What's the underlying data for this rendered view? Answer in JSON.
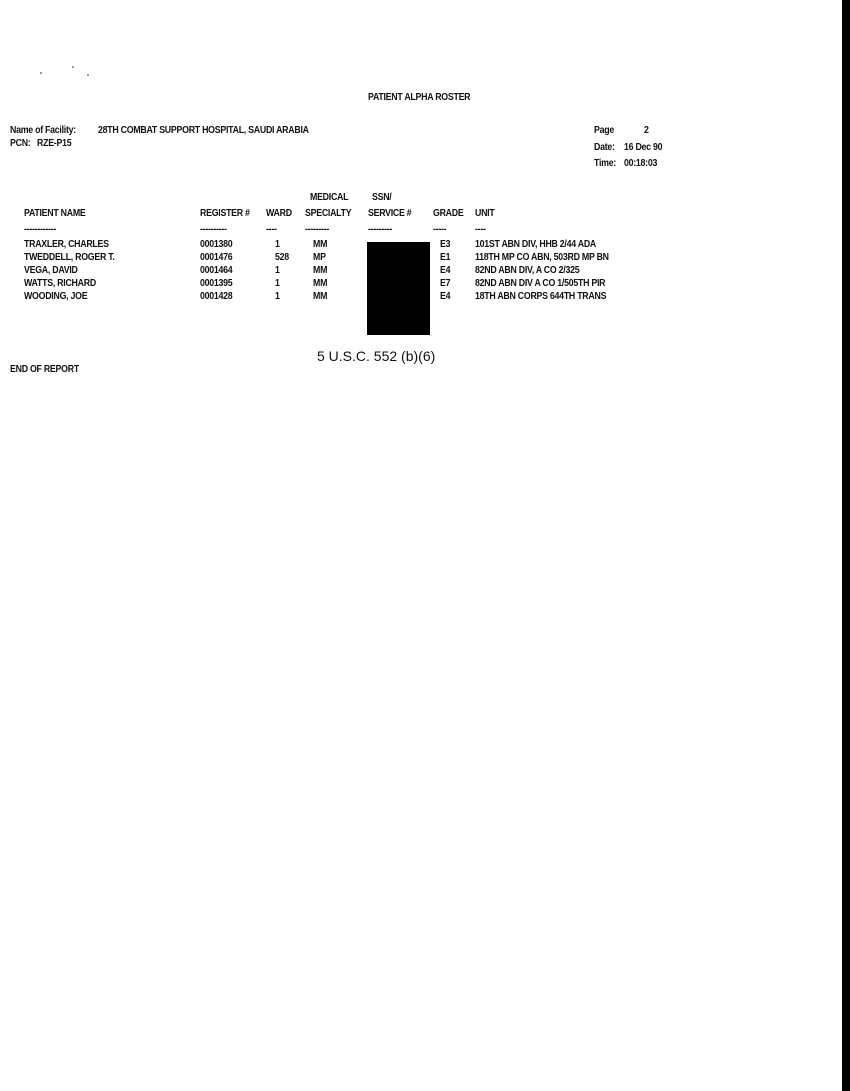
{
  "report": {
    "title": "PATIENT ALPHA ROSTER",
    "facility_label": "Name of Facility:",
    "facility": "28TH COMBAT SUPPORT HOSPITAL, SAUDI ARABIA",
    "pcn_label": "PCN:",
    "pcn": "RZE-P15",
    "page_label": "Page",
    "page": "2",
    "date_label": "Date:",
    "date": "16 Dec 90",
    "time_label": "Time:",
    "time": "00:18:03"
  },
  "table": {
    "headers_top": {
      "specialty": "MEDICAL",
      "ssn": "SSN/"
    },
    "headers": {
      "name": "PATIENT NAME",
      "register": "REGISTER #",
      "ward": "WARD",
      "specialty": "SPECIALTY",
      "ssn": "SERVICE #",
      "grade": "GRADE",
      "unit": "UNIT"
    },
    "dashes": {
      "name": "------------",
      "register": "----------",
      "ward": "----",
      "specialty": "---------",
      "ssn": "---------",
      "grade": "-----",
      "unit": "----"
    },
    "rows": [
      {
        "name": "TRAXLER, CHARLES",
        "register": "0001380",
        "ward": "1",
        "specialty": "MM",
        "grade": "E3",
        "unit": "101ST ABN DIV, HHB 2/44 ADA"
      },
      {
        "name": "TWEDDELL, ROGER T.",
        "register": "0001476",
        "ward": "528",
        "specialty": "MP",
        "grade": "E1",
        "unit": "118TH MP CO ABN, 503RD MP BN"
      },
      {
        "name": "VEGA, DAVID",
        "register": "0001464",
        "ward": "1",
        "specialty": "MM",
        "grade": "E4",
        "unit": "82ND ABN DIV, A CO 2/325"
      },
      {
        "name": "WATTS, RICHARD",
        "register": "0001395",
        "ward": "1",
        "specialty": "MM",
        "grade": "E7",
        "unit": "82ND ABN DIV A CO 1/505TH PIR"
      },
      {
        "name": "WOODING, JOE",
        "register": "0001428",
        "ward": "1",
        "specialty": "MM",
        "grade": "E4",
        "unit": "18TH ABN CORPS 644TH TRANS"
      }
    ]
  },
  "redaction_caption": "5 U.S.C. 552 (b)(6)",
  "footer": "END OF REPORT"
}
